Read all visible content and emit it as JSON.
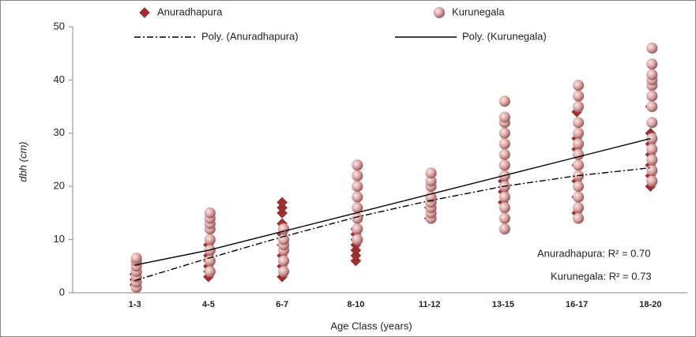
{
  "chart_data": {
    "type": "scatter",
    "y_label": "dbh (cm)",
    "x_label": "Age Class (years)",
    "categories": [
      "1-3",
      "4-5",
      "6-7",
      "8-10",
      "11-12",
      "13-15",
      "16-17",
      "18-20"
    ],
    "ylim": [
      0,
      50
    ],
    "yticks": [
      0,
      10,
      20,
      30,
      40,
      50
    ],
    "series": [
      {
        "name": "Anuradhapura",
        "color": "#a03030",
        "marker": "diamond",
        "values": [
          [
            1.5,
            2.5,
            3.5
          ],
          [
            3,
            4,
            5,
            6,
            7,
            9
          ],
          [
            3,
            5,
            7,
            9,
            11,
            13,
            15,
            16,
            17
          ],
          [
            6,
            7,
            8,
            9,
            10,
            11,
            12
          ],
          [
            14,
            16
          ],
          [
            17,
            19,
            21
          ],
          [
            15,
            18,
            21,
            24,
            27,
            29,
            34
          ],
          [
            20,
            22,
            24,
            26,
            28,
            30,
            35
          ]
        ]
      },
      {
        "name": "Kurunegala",
        "color": "#d9a0a0",
        "marker": "sphere",
        "values": [
          [
            1,
            2,
            3,
            4,
            5,
            6,
            6.5
          ],
          [
            4,
            6,
            8,
            10,
            12,
            13,
            14,
            15
          ],
          [
            4,
            6,
            8,
            9,
            10,
            12
          ],
          [
            10,
            12,
            14,
            16,
            18,
            20,
            22,
            24
          ],
          [
            14,
            15,
            16,
            17,
            18,
            20,
            21,
            22.5
          ],
          [
            12,
            14,
            16,
            18,
            20,
            22,
            24,
            26,
            28,
            30,
            32,
            33,
            36
          ],
          [
            14,
            16,
            18,
            20,
            22,
            24,
            26,
            28,
            30,
            32,
            35,
            37,
            39
          ],
          [
            21,
            23,
            25,
            27,
            29,
            32,
            35,
            37,
            39,
            40,
            41,
            43,
            46
          ]
        ]
      },
      {
        "name": "Poly. (Anuradhapura)",
        "color": "#000000",
        "line": "dash-dot",
        "values": [
          2.3,
          6.5,
          10.5,
          14.2,
          17.3,
          20,
          22,
          23.5
        ]
      },
      {
        "name": "Poly. (Kurunegala)",
        "color": "#000000",
        "line": "solid",
        "values": [
          5.2,
          8,
          11.5,
          15,
          18.5,
          22,
          25.5,
          29
        ]
      }
    ],
    "annotations": [
      "Anuradhapura:  R² = 0.70",
      "Kurunegala: R² = 0.73"
    ]
  }
}
